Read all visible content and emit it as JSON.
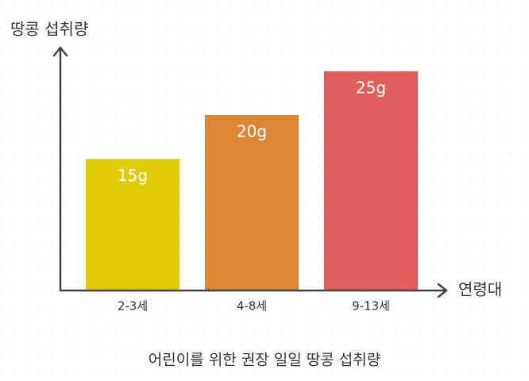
{
  "chart_data": {
    "type": "bar",
    "title": "어린이를 위한 권장 일일 땅콩 섭취량",
    "y_label": "땅콩 섭취량",
    "x_label": "연령대",
    "categories": [
      "2-3세",
      "4-8세",
      "9-13세"
    ],
    "values": [
      15,
      20,
      25
    ],
    "value_labels": [
      "15g",
      "20g",
      "25g"
    ],
    "colors": [
      "#e2cc0a",
      "#dc8532",
      "#e05e5a"
    ]
  }
}
